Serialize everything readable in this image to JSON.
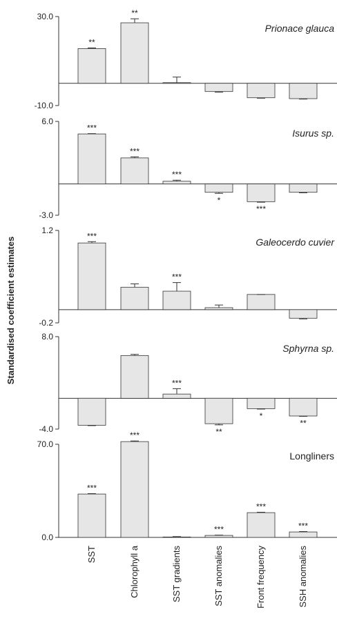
{
  "ylabel": "Standardised coefficient estimates",
  "chart_data": [
    {
      "type": "bar",
      "title": "Prionace glauca",
      "title_italic": true,
      "color": "#e6e6e6",
      "values": [
        15.6,
        27.2,
        0.3,
        -3.7,
        -6.5,
        -6.9
      ],
      "errors": [
        0.3,
        1.8,
        2.5,
        0.3,
        0.2,
        0.2
      ],
      "annotations": [
        "**",
        "**",
        null,
        null,
        null,
        null
      ],
      "ylim": [
        -10,
        30
      ],
      "yticks": [
        {
          "value": -10,
          "label": "-10.0"
        },
        {
          "value": 30,
          "label": "30.0"
        }
      ]
    },
    {
      "type": "bar",
      "title": "Isurus sp.",
      "title_italic": true,
      "color": "#e6e6e6",
      "values": [
        4.8,
        2.5,
        0.26,
        -0.8,
        -1.7,
        -0.8
      ],
      "errors": [
        0.03,
        0.1,
        0.1,
        0.1,
        0.05,
        0.05
      ],
      "annotations": [
        "***",
        "***",
        "***",
        "*",
        "***",
        null
      ],
      "ylim": [
        -3,
        6
      ],
      "yticks": [
        {
          "value": -3,
          "label": "-3.0"
        },
        {
          "value": 6,
          "label": "6.0"
        }
      ]
    },
    {
      "type": "bar",
      "title": "Galeocerdo cuvier",
      "title_italic": true,
      "color": "#e6e6e6",
      "values": [
        1.01,
        0.34,
        0.28,
        0.03,
        0.23,
        -0.13
      ],
      "errors": [
        0.02,
        0.05,
        0.13,
        0.04,
        0.0,
        0.01
      ],
      "annotations": [
        "***",
        null,
        "***",
        null,
        null,
        null
      ],
      "ylim": [
        -0.2,
        1.2
      ],
      "yticks": [
        {
          "value": -0.2,
          "label": "-0.2"
        },
        {
          "value": 1.2,
          "label": "1.2"
        }
      ]
    },
    {
      "type": "bar",
      "title": "Sphyrna sp.",
      "title_italic": true,
      "color": "#e6e6e6",
      "values": [
        -3.5,
        5.55,
        0.55,
        -3.3,
        -1.35,
        -2.3
      ],
      "errors": [
        0.05,
        0.15,
        0.7,
        0.15,
        0.05,
        0.05
      ],
      "annotations": [
        null,
        null,
        "***",
        "**",
        "*",
        "**"
      ],
      "ylim": [
        -4,
        8
      ],
      "yticks": [
        {
          "value": -4,
          "label": "-4.0"
        },
        {
          "value": 8,
          "label": "8.0"
        }
      ]
    },
    {
      "type": "bar",
      "title": "Longliners",
      "title_italic": false,
      "color": "#e6e6e6",
      "values": [
        32.6,
        72,
        0.3,
        1.5,
        18.6,
        4.1
      ],
      "errors": [
        0.3,
        0.5,
        0.3,
        0.2,
        0.3,
        0.3
      ],
      "annotations": [
        "***",
        "***",
        null,
        "***",
        "***",
        "***"
      ],
      "categories": [
        "SST",
        "Chlorophyll a",
        "SST gradients",
        "SST anomalies",
        "Front frequency",
        "SSH anomalies"
      ],
      "ylim": [
        0,
        70
      ],
      "yticks": [
        {
          "value": 0,
          "label": "0.0"
        },
        {
          "value": 70,
          "label": "70.0"
        }
      ]
    }
  ]
}
